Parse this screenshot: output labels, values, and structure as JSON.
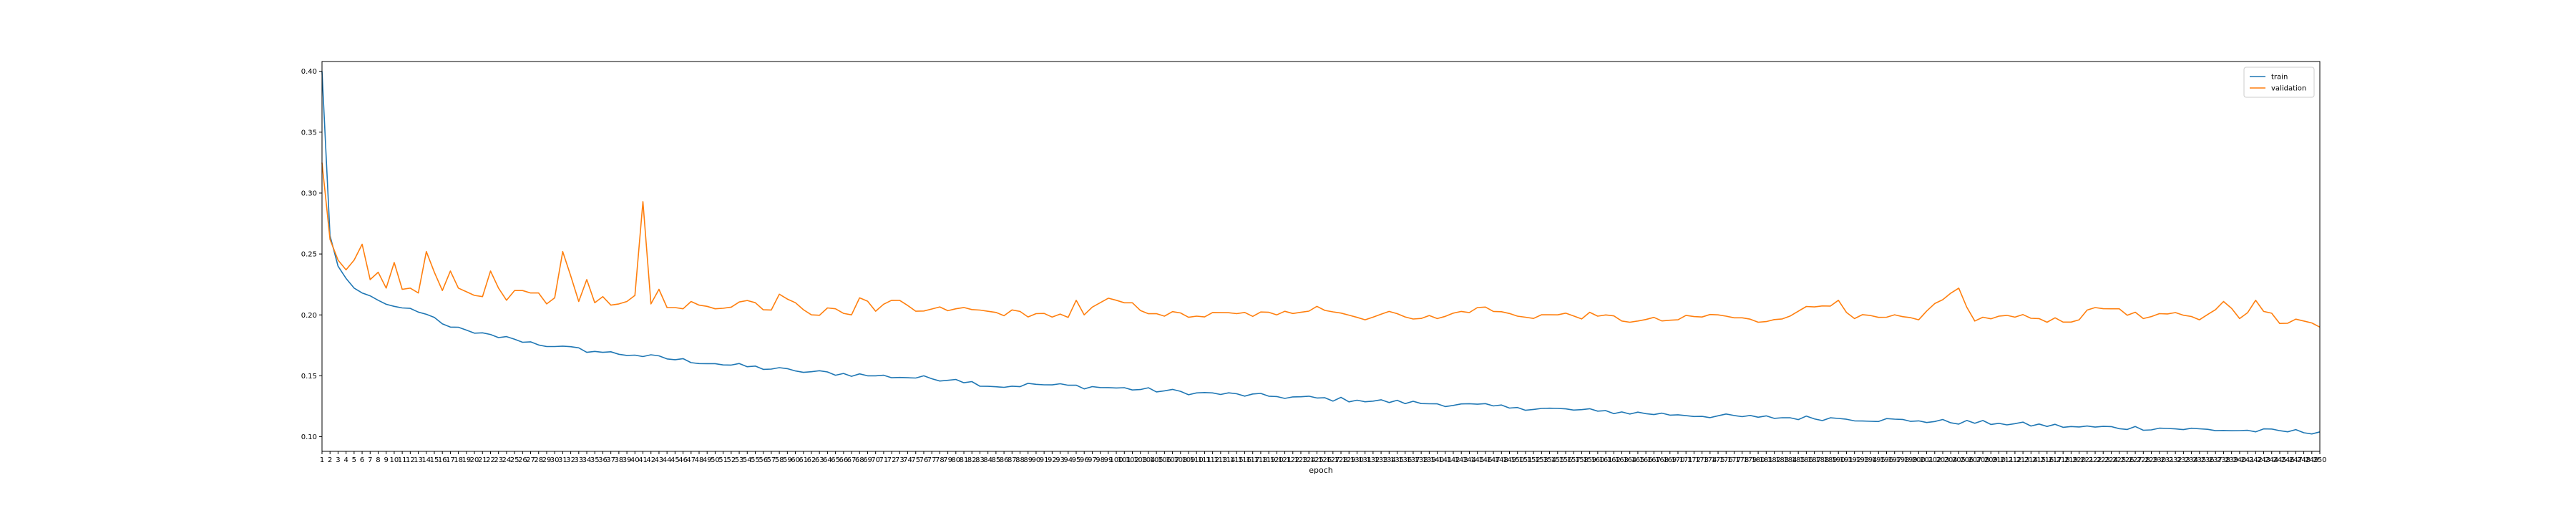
{
  "chart_data": {
    "type": "line",
    "title": "",
    "xlabel": "epoch",
    "ylabel": "",
    "xlim": [
      1,
      250
    ],
    "ylim": [
      0.088,
      0.408
    ],
    "yticks": [
      0.1,
      0.15,
      0.2,
      0.25,
      0.3,
      0.35,
      0.4
    ],
    "ytick_labels": [
      "0.10",
      "0.15",
      "0.20",
      "0.25",
      "0.30",
      "0.35",
      "0.40"
    ],
    "xticks_note": "every integer epoch 1..250 labeled",
    "grid": false,
    "legend_position": "top-right",
    "series": [
      {
        "name": "train",
        "color": "#1f77b4",
        "keypoints": [
          [
            1,
            0.4
          ],
          [
            2,
            0.265
          ],
          [
            3,
            0.24
          ],
          [
            4,
            0.23
          ],
          [
            5,
            0.222
          ],
          [
            6,
            0.218
          ],
          [
            8,
            0.212
          ],
          [
            10,
            0.207
          ],
          [
            15,
            0.198
          ],
          [
            17,
            0.19
          ],
          [
            20,
            0.185
          ],
          [
            25,
            0.18
          ],
          [
            30,
            0.174
          ],
          [
            35,
            0.17
          ],
          [
            40,
            0.167
          ],
          [
            50,
            0.16
          ],
          [
            60,
            0.154
          ],
          [
            70,
            0.15
          ],
          [
            80,
            0.147
          ],
          [
            85,
            0.141
          ],
          [
            90,
            0.143
          ],
          [
            100,
            0.14
          ],
          [
            110,
            0.136
          ],
          [
            120,
            0.133
          ],
          [
            130,
            0.13
          ],
          [
            140,
            0.127
          ],
          [
            150,
            0.124
          ],
          [
            160,
            0.121
          ],
          [
            170,
            0.118
          ],
          [
            180,
            0.116
          ],
          [
            190,
            0.115
          ],
          [
            200,
            0.113
          ],
          [
            210,
            0.111
          ],
          [
            220,
            0.108
          ],
          [
            230,
            0.107
          ],
          [
            240,
            0.105
          ],
          [
            250,
            0.104
          ]
        ]
      },
      {
        "name": "validation",
        "color": "#ff7f0e",
        "keypoints": [
          [
            1,
            0.325
          ],
          [
            2,
            0.262
          ],
          [
            3,
            0.245
          ],
          [
            4,
            0.237
          ],
          [
            5,
            0.245
          ],
          [
            6,
            0.258
          ],
          [
            7,
            0.229
          ],
          [
            8,
            0.235
          ],
          [
            9,
            0.222
          ],
          [
            10,
            0.243
          ],
          [
            11,
            0.221
          ],
          [
            12,
            0.222
          ],
          [
            13,
            0.218
          ],
          [
            14,
            0.252
          ],
          [
            15,
            0.235
          ],
          [
            16,
            0.22
          ],
          [
            17,
            0.236
          ],
          [
            18,
            0.222
          ],
          [
            19,
            0.219
          ],
          [
            20,
            0.216
          ],
          [
            21,
            0.215
          ],
          [
            22,
            0.236
          ],
          [
            23,
            0.222
          ],
          [
            24,
            0.212
          ],
          [
            25,
            0.22
          ],
          [
            26,
            0.22
          ],
          [
            27,
            0.218
          ],
          [
            28,
            0.218
          ],
          [
            29,
            0.209
          ],
          [
            30,
            0.214
          ],
          [
            31,
            0.252
          ],
          [
            32,
            0.232
          ],
          [
            33,
            0.211
          ],
          [
            34,
            0.229
          ],
          [
            35,
            0.21
          ],
          [
            36,
            0.215
          ],
          [
            37,
            0.208
          ],
          [
            38,
            0.209
          ],
          [
            39,
            0.211
          ],
          [
            40,
            0.216
          ],
          [
            41,
            0.293
          ],
          [
            42,
            0.209
          ],
          [
            43,
            0.221
          ],
          [
            44,
            0.206
          ],
          [
            45,
            0.206
          ],
          [
            46,
            0.205
          ],
          [
            47,
            0.211
          ],
          [
            48,
            0.208
          ],
          [
            49,
            0.207
          ],
          [
            50,
            0.205
          ],
          [
            55,
            0.21
          ],
          [
            57,
            0.204
          ],
          [
            58,
            0.217
          ],
          [
            60,
            0.21
          ],
          [
            62,
            0.2
          ],
          [
            65,
            0.205
          ],
          [
            67,
            0.2
          ],
          [
            68,
            0.214
          ],
          [
            70,
            0.203
          ],
          [
            72,
            0.212
          ],
          [
            75,
            0.203
          ],
          [
            80,
            0.205
          ],
          [
            85,
            0.202
          ],
          [
            90,
            0.201
          ],
          [
            94,
            0.198
          ],
          [
            95,
            0.212
          ],
          [
            96,
            0.2
          ],
          [
            98,
            0.21
          ],
          [
            100,
            0.212
          ],
          [
            105,
            0.201
          ],
          [
            110,
            0.199
          ],
          [
            115,
            0.201
          ],
          [
            120,
            0.2
          ],
          [
            125,
            0.207
          ],
          [
            130,
            0.198
          ],
          [
            135,
            0.201
          ],
          [
            140,
            0.197
          ],
          [
            145,
            0.206
          ],
          [
            150,
            0.199
          ],
          [
            155,
            0.2
          ],
          [
            160,
            0.199
          ],
          [
            165,
            0.195
          ],
          [
            170,
            0.196
          ],
          [
            175,
            0.2
          ],
          [
            180,
            0.194
          ],
          [
            185,
            0.203
          ],
          [
            190,
            0.212
          ],
          [
            192,
            0.197
          ],
          [
            195,
            0.198
          ],
          [
            200,
            0.196
          ],
          [
            205,
            0.222
          ],
          [
            207,
            0.195
          ],
          [
            210,
            0.199
          ],
          [
            215,
            0.197
          ],
          [
            220,
            0.196
          ],
          [
            222,
            0.206
          ],
          [
            225,
            0.205
          ],
          [
            228,
            0.197
          ],
          [
            230,
            0.201
          ],
          [
            235,
            0.196
          ],
          [
            238,
            0.211
          ],
          [
            240,
            0.197
          ],
          [
            242,
            0.212
          ],
          [
            245,
            0.193
          ],
          [
            248,
            0.195
          ],
          [
            250,
            0.19
          ]
        ]
      }
    ]
  }
}
